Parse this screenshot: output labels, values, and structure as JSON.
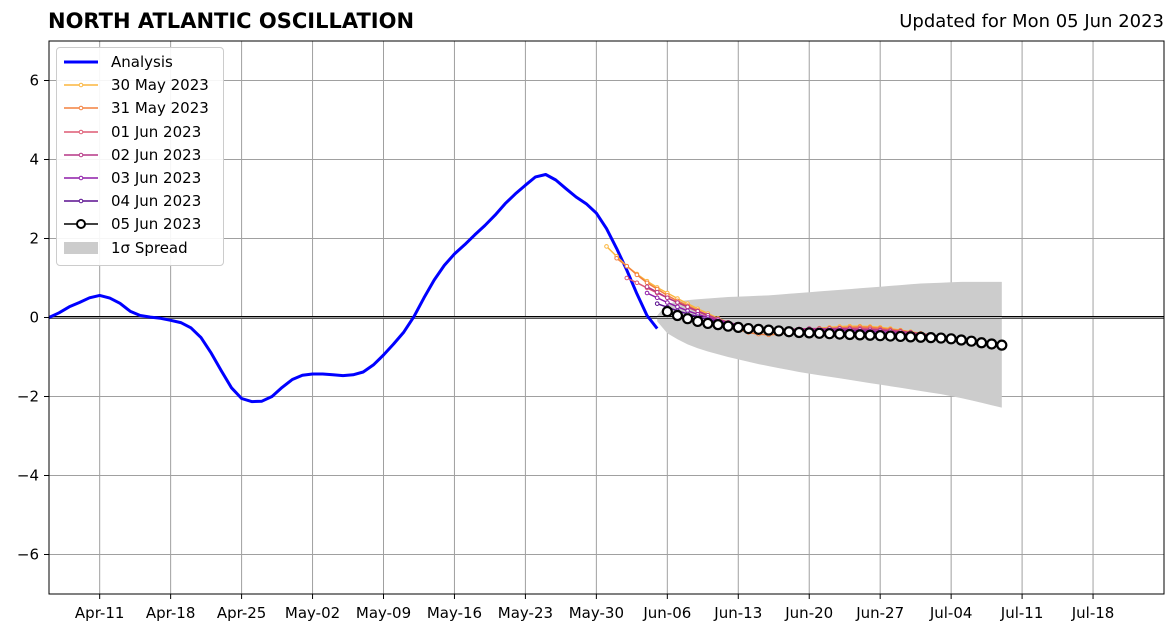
{
  "header": {
    "title": "NORTH ATLANTIC OSCILLATION",
    "updated": "Updated for Mon 05 Jun 2023"
  },
  "chart_data": {
    "type": "line",
    "title": "NORTH ATLANTIC OSCILLATION",
    "subtitle": "Updated for Mon 05 Jun 2023",
    "xlabel": "",
    "ylabel": "",
    "x_ticks": [
      {
        "date": "2023-04-11",
        "label": "Apr-11"
      },
      {
        "date": "2023-04-18",
        "label": "Apr-18"
      },
      {
        "date": "2023-04-25",
        "label": "Apr-25"
      },
      {
        "date": "2023-05-02",
        "label": "May-02"
      },
      {
        "date": "2023-05-09",
        "label": "May-09"
      },
      {
        "date": "2023-05-16",
        "label": "May-16"
      },
      {
        "date": "2023-05-23",
        "label": "May-23"
      },
      {
        "date": "2023-05-30",
        "label": "May-30"
      },
      {
        "date": "2023-06-06",
        "label": "Jun-06"
      },
      {
        "date": "2023-06-13",
        "label": "Jun-13"
      },
      {
        "date": "2023-06-20",
        "label": "Jun-20"
      },
      {
        "date": "2023-06-27",
        "label": "Jun-27"
      },
      {
        "date": "2023-07-04",
        "label": "Jul-04"
      },
      {
        "date": "2023-07-11",
        "label": "Jul-11"
      },
      {
        "date": "2023-07-18",
        "label": "Jul-18"
      }
    ],
    "y_ticks": [
      6,
      4,
      2,
      0,
      -2,
      -4,
      -6
    ],
    "xlim": [
      "2023-04-06",
      "2023-07-25"
    ],
    "ylim": [
      -7,
      7
    ],
    "grid": true,
    "legend_position": "top-left",
    "zero_line": true,
    "analysis": {
      "name": "Analysis",
      "color": "#0000ff",
      "start": "2023-04-06",
      "values": [
        0.0,
        0.12,
        0.27,
        0.38,
        0.5,
        0.56,
        0.49,
        0.36,
        0.16,
        0.05,
        0.01,
        -0.02,
        -0.07,
        -0.13,
        -0.26,
        -0.51,
        -0.9,
        -1.35,
        -1.78,
        -2.05,
        -2.13,
        -2.12,
        -2.0,
        -1.77,
        -1.57,
        -1.46,
        -1.43,
        -1.43,
        -1.45,
        -1.47,
        -1.45,
        -1.38,
        -1.2,
        -0.95,
        -0.67,
        -0.37,
        0.02,
        0.5,
        0.95,
        1.32,
        1.61,
        1.84,
        2.09,
        2.33,
        2.59,
        2.88,
        3.13,
        3.35,
        3.56,
        3.62,
        3.48,
        3.26,
        3.05,
        2.88,
        2.64,
        2.25,
        1.75,
        1.2,
        0.6,
        0.05,
        -0.28
      ]
    },
    "forecasts": [
      {
        "name": "30 May 2023",
        "color": "#fbb63f",
        "start": "2023-05-31",
        "values": [
          1.8,
          1.55,
          1.3,
          1.1,
          0.92,
          0.76,
          0.62,
          0.48,
          0.35,
          0.22,
          0.1,
          -0.02,
          -0.12,
          -0.22,
          -0.3,
          -0.35,
          -0.38,
          -0.38,
          -0.36,
          -0.33,
          -0.3,
          -0.27,
          -0.25,
          -0.23,
          -0.22,
          -0.22,
          -0.23,
          -0.25,
          -0.28,
          -0.32,
          -0.36,
          -0.4,
          -0.44
        ]
      },
      {
        "name": "31 May 2023",
        "color": "#f3803e",
        "start": "2023-06-01",
        "values": [
          1.5,
          1.3,
          1.08,
          0.88,
          0.72,
          0.56,
          0.42,
          0.3,
          0.18,
          0.05,
          -0.08,
          -0.2,
          -0.3,
          -0.38,
          -0.42,
          -0.44,
          -0.42,
          -0.39,
          -0.36,
          -0.33,
          -0.3,
          -0.28,
          -0.26,
          -0.25,
          -0.24,
          -0.25,
          -0.27,
          -0.3,
          -0.33,
          -0.37,
          -0.41,
          -0.45
        ]
      },
      {
        "name": "01 Jun 2023",
        "color": "#dd5a73",
        "start": "2023-06-02",
        "values": [
          1.0,
          0.88,
          0.75,
          0.62,
          0.5,
          0.38,
          0.26,
          0.15,
          0.04,
          -0.07,
          -0.16,
          -0.24,
          -0.3,
          -0.33,
          -0.34,
          -0.33,
          -0.32,
          -0.31,
          -0.3,
          -0.29,
          -0.28,
          -0.27,
          -0.27,
          -0.27,
          -0.28,
          -0.3,
          -0.32,
          -0.35,
          -0.38,
          -0.42,
          -0.46
        ]
      },
      {
        "name": "02 Jun 2023",
        "color": "#b63685",
        "start": "2023-06-04",
        "values": [
          0.78,
          0.64,
          0.5,
          0.38,
          0.27,
          0.16,
          0.06,
          -0.04,
          -0.12,
          -0.19,
          -0.24,
          -0.27,
          -0.29,
          -0.3,
          -0.3,
          -0.29,
          -0.28,
          -0.28,
          -0.28,
          -0.28,
          -0.29,
          -0.3,
          -0.31,
          -0.32,
          -0.34,
          -0.36,
          -0.38,
          -0.41,
          -0.44,
          -0.48
        ]
      },
      {
        "name": "03 Jun 2023",
        "color": "#8e1ca8",
        "start": "2023-06-04",
        "values": [
          0.62,
          0.5,
          0.38,
          0.27,
          0.17,
          0.08,
          0.0,
          -0.08,
          -0.14,
          -0.2,
          -0.24,
          -0.27,
          -0.29,
          -0.31,
          -0.32,
          -0.32,
          -0.32,
          -0.32,
          -0.32,
          -0.32,
          -0.33,
          -0.34,
          -0.35,
          -0.36,
          -0.38,
          -0.4,
          -0.42,
          -0.45,
          -0.48,
          -0.5
        ]
      },
      {
        "name": "04 Jun 2023",
        "color": "#5a0f8f",
        "start": "2023-06-05",
        "values": [
          0.35,
          0.26,
          0.17,
          0.09,
          0.02,
          -0.05,
          -0.11,
          -0.16,
          -0.2,
          -0.24,
          -0.27,
          -0.29,
          -0.31,
          -0.33,
          -0.34,
          -0.35,
          -0.36,
          -0.37,
          -0.38,
          -0.38,
          -0.39,
          -0.4,
          -0.41,
          -0.43,
          -0.45,
          -0.47,
          -0.5,
          -0.53,
          -0.56
        ]
      }
    ],
    "latest": {
      "name": "05 Jun 2023",
      "color": "#000000",
      "start": "2023-06-06",
      "values": [
        0.15,
        0.05,
        -0.03,
        -0.1,
        -0.15,
        -0.18,
        -0.22,
        -0.25,
        -0.28,
        -0.3,
        -0.32,
        -0.34,
        -0.36,
        -0.38,
        -0.39,
        -0.4,
        -0.41,
        -0.42,
        -0.43,
        -0.44,
        -0.45,
        -0.46,
        -0.47,
        -0.48,
        -0.49,
        -0.5,
        -0.51,
        -0.52,
        -0.54,
        -0.57,
        -0.6,
        -0.64,
        -0.67,
        -0.7
      ]
    },
    "spread": {
      "name": "1σ Spread",
      "color": "#cccccc",
      "start": "2023-06-05",
      "upper": [
        0.05,
        0.34,
        0.41,
        0.44,
        0.46,
        0.48,
        0.5,
        0.52,
        0.53,
        0.54,
        0.55,
        0.56,
        0.58,
        0.6,
        0.62,
        0.64,
        0.66,
        0.68,
        0.7,
        0.72,
        0.74,
        0.76,
        0.78,
        0.8,
        0.82,
        0.84,
        0.86,
        0.87,
        0.88,
        0.89,
        0.9,
        0.9,
        0.9,
        0.9,
        0.9
      ],
      "lower": [
        -0.1,
        -0.4,
        -0.55,
        -0.68,
        -0.78,
        -0.86,
        -0.93,
        -1.0,
        -1.06,
        -1.12,
        -1.18,
        -1.23,
        -1.28,
        -1.33,
        -1.38,
        -1.42,
        -1.46,
        -1.5,
        -1.54,
        -1.58,
        -1.62,
        -1.66,
        -1.7,
        -1.74,
        -1.78,
        -1.82,
        -1.86,
        -1.9,
        -1.94,
        -1.99,
        -2.04,
        -2.1,
        -2.16,
        -2.22,
        -2.28
      ]
    },
    "legend": [
      {
        "label": "Analysis",
        "color": "#0000ff",
        "kind": "thick-line"
      },
      {
        "label": "30 May 2023",
        "color": "#fbb63f",
        "kind": "line-dot"
      },
      {
        "label": "31 May 2023",
        "color": "#f3803e",
        "kind": "line-dot"
      },
      {
        "label": "01 Jun 2023",
        "color": "#dd5a73",
        "kind": "line-dot"
      },
      {
        "label": "02 Jun 2023",
        "color": "#b63685",
        "kind": "line-dot"
      },
      {
        "label": "03 Jun 2023",
        "color": "#8e1ca8",
        "kind": "line-dot"
      },
      {
        "label": "04 Jun 2023",
        "color": "#5a0f8f",
        "kind": "line-dot"
      },
      {
        "label": "05 Jun 2023",
        "color": "#000000",
        "kind": "line-circle"
      },
      {
        "label": "1σ Spread",
        "color": "#cccccc",
        "kind": "patch"
      }
    ]
  }
}
